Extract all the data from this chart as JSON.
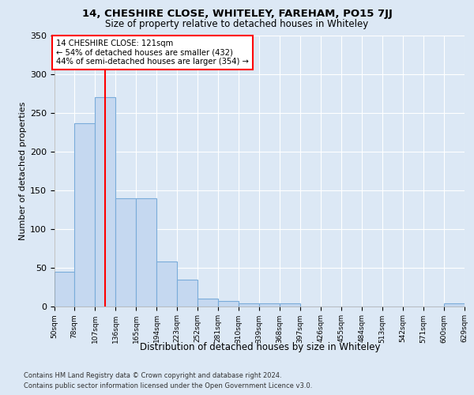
{
  "title": "14, CHESHIRE CLOSE, WHITELEY, FAREHAM, PO15 7JJ",
  "subtitle": "Size of property relative to detached houses in Whiteley",
  "xlabel": "Distribution of detached houses by size in Whiteley",
  "ylabel": "Number of detached properties",
  "bar_color": "#c5d8f0",
  "bar_edge_color": "#7aacda",
  "red_line_x": 121,
  "annotation_text": "14 CHESHIRE CLOSE: 121sqm\n← 54% of detached houses are smaller (432)\n44% of semi-detached houses are larger (354) →",
  "footer_line1": "Contains HM Land Registry data © Crown copyright and database right 2024.",
  "footer_line2": "Contains public sector information licensed under the Open Government Licence v3.0.",
  "bin_edges": [
    50,
    78,
    107,
    136,
    165,
    194,
    223,
    252,
    281,
    310,
    339,
    368,
    397,
    426,
    455,
    484,
    513,
    542,
    571,
    600,
    629
  ],
  "bar_heights": [
    44,
    237,
    270,
    140,
    140,
    58,
    34,
    10,
    7,
    4,
    4,
    4,
    0,
    0,
    0,
    0,
    0,
    0,
    0,
    4
  ],
  "ylim": [
    0,
    350
  ],
  "fig_bg_color": "#dce8f5",
  "plot_bg_color": "#dce8f5",
  "grid_color": "#ffffff",
  "title_fontsize": 9.5,
  "subtitle_fontsize": 8.5,
  "ylabel_fontsize": 8,
  "xlabel_fontsize": 8.5,
  "ytick_fontsize": 8,
  "xtick_fontsize": 6.5,
  "footer_fontsize": 6.0
}
